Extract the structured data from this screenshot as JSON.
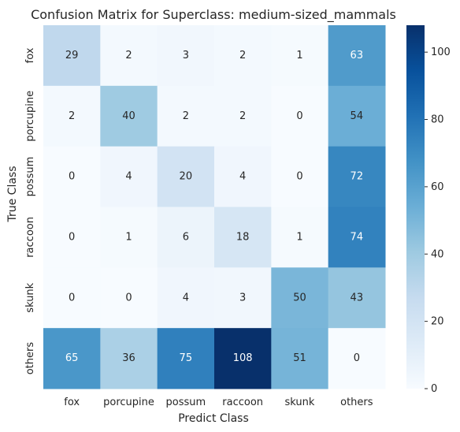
{
  "chart_data": {
    "type": "heatmap",
    "title": "Confusion Matrix for Superclass: medium-sized_mammals",
    "xlabel": "Predict Class",
    "ylabel": "True Class",
    "x_categories": [
      "fox",
      "porcupine",
      "possum",
      "raccoon",
      "skunk",
      "others"
    ],
    "y_categories": [
      "fox",
      "porcupine",
      "possum",
      "raccoon",
      "skunk",
      "others"
    ],
    "values": [
      [
        29,
        2,
        3,
        2,
        1,
        63
      ],
      [
        2,
        40,
        2,
        2,
        0,
        54
      ],
      [
        0,
        4,
        20,
        4,
        0,
        72
      ],
      [
        0,
        1,
        6,
        18,
        1,
        74
      ],
      [
        0,
        0,
        4,
        3,
        50,
        43
      ],
      [
        65,
        36,
        75,
        108,
        51,
        0
      ]
    ],
    "colorbar": {
      "colormap": "Blues",
      "vmin": 0,
      "vmax": 108,
      "ticks": [
        0,
        20,
        40,
        60,
        80,
        100
      ]
    },
    "grid": false
  }
}
